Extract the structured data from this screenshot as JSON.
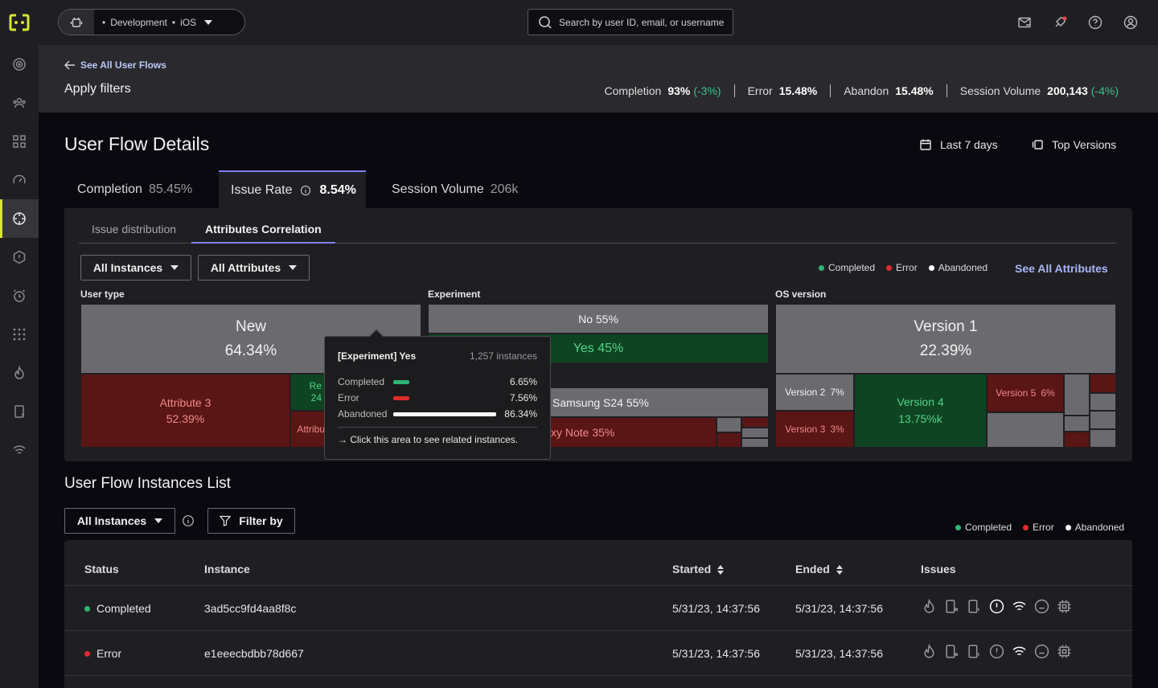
{
  "topbar": {
    "env_label": "Development",
    "platform_label": "iOS",
    "search_placeholder": "Search by user ID, email, or username"
  },
  "header": {
    "back_link": "See All User Flows",
    "apply_filters": "Apply filters",
    "metrics": [
      {
        "label": "Completion",
        "value": "93%",
        "delta": "(-3%)"
      },
      {
        "label": "Error",
        "value": "15.48%",
        "delta": ""
      },
      {
        "label": "Abandon",
        "value": "15.48%",
        "delta": ""
      },
      {
        "label": "Session Volume",
        "value": "200,143",
        "delta": "(-4%)"
      }
    ]
  },
  "details": {
    "title": "User Flow Details",
    "date_range": "Last 7 days",
    "versions": "Top Versions",
    "tabs": [
      {
        "label": "Completion",
        "value": "85.45%"
      },
      {
        "label": "Issue Rate",
        "value": "8.54%"
      },
      {
        "label": "Session Volume",
        "value": "206k"
      }
    ],
    "subtabs": [
      "Issue distribution",
      "Attributes Correlation"
    ],
    "instances_dropdown": "All Instances",
    "attributes_dropdown": "All Attributes",
    "legend": [
      "Completed",
      "Error",
      "Abandoned"
    ],
    "see_all": "See All Attributes",
    "colors": {
      "completed": "#2bb673",
      "error": "#e02b2b",
      "abandoned": "#ffffff",
      "accent": "#7f7ff0"
    }
  },
  "treemap": {
    "groups": [
      "User type",
      "Experiment",
      "OS version"
    ],
    "user_type": {
      "new_label": "New",
      "new_value": "64.34%",
      "attr3_label": "Attribute 3",
      "attr3_value": "52.39%",
      "green_a": "Re",
      "green_b": "24",
      "attr_cut": "Attribu"
    },
    "experiment": {
      "no_label": "No 55%",
      "yes_label": "Yes 45%",
      "samsung_label": "Samsung S24 55%",
      "galaxy_label": "xy Note 35%"
    },
    "os": {
      "v1_label": "Version 1",
      "v1_value": "22.39%",
      "v2_label": "Version 2",
      "v2_value": "7%",
      "v3_label": "Version 3",
      "v3_value": "3%",
      "v4_label": "Version 4",
      "v4_value": "13.75%k",
      "v5_label": "Version 5",
      "v5_value": "6%"
    }
  },
  "tooltip": {
    "title": "[Experiment] Yes",
    "instances": "1,257 instances",
    "rows": [
      {
        "label": "Completed",
        "value": "6.65%",
        "pct": 6.65
      },
      {
        "label": "Error",
        "value": "7.56%",
        "pct": 7.56
      },
      {
        "label": "Abandoned",
        "value": "86.34%",
        "pct": 86.34
      }
    ],
    "footer": "→ Click this area to see related instances."
  },
  "list": {
    "title": "User Flow Instances List",
    "instances_dropdown": "All Instances",
    "filter_label": "Filter by",
    "legend": [
      "Completed",
      "Error",
      "Abandoned"
    ],
    "columns": [
      "Status",
      "Instance",
      "Started",
      "Ended",
      "Issues"
    ],
    "rows": [
      {
        "status": "Completed",
        "instance": "3ad5cc9fd4aa8f8c",
        "started": "5/31/23, 14:37:56",
        "ended": "5/31/23, 14:37:56"
      },
      {
        "status": "Error",
        "instance": "e1eeecbdbb78d667",
        "started": "5/31/23, 14:37:56",
        "ended": "5/31/23, 14:37:56"
      }
    ]
  }
}
